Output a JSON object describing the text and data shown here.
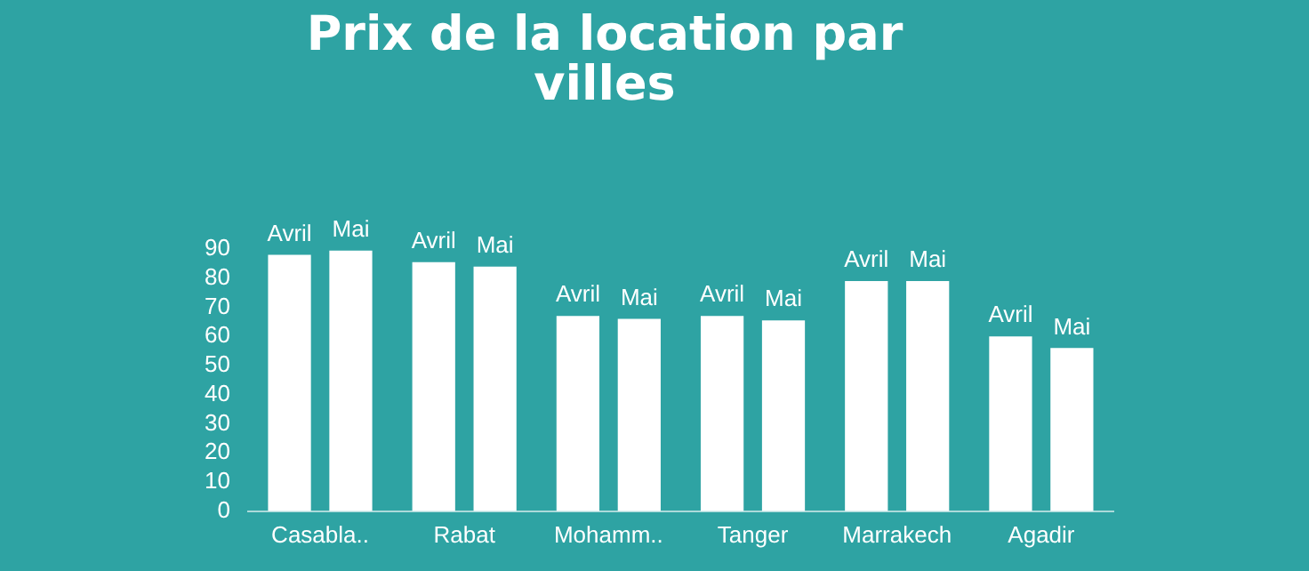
{
  "chart_data": {
    "type": "bar",
    "title": "Prix de la location par villes",
    "categories": [
      "Casabla..",
      "Rabat",
      "Mohamm..",
      "Tanger",
      "Marrakech",
      "Agadir"
    ],
    "series": [
      {
        "name": "Avril",
        "color": "#ffffff",
        "values": [
          88,
          85.5,
          67,
          67,
          79,
          60
        ]
      },
      {
        "name": "Mai",
        "color": "#ffffff",
        "values": [
          89.5,
          84,
          66,
          65.5,
          79,
          56
        ]
      }
    ],
    "ylim": [
      0,
      90
    ],
    "yticks": [
      0,
      10,
      20,
      30,
      40,
      50,
      60,
      70,
      80,
      90
    ],
    "grid": false,
    "legend": false
  }
}
